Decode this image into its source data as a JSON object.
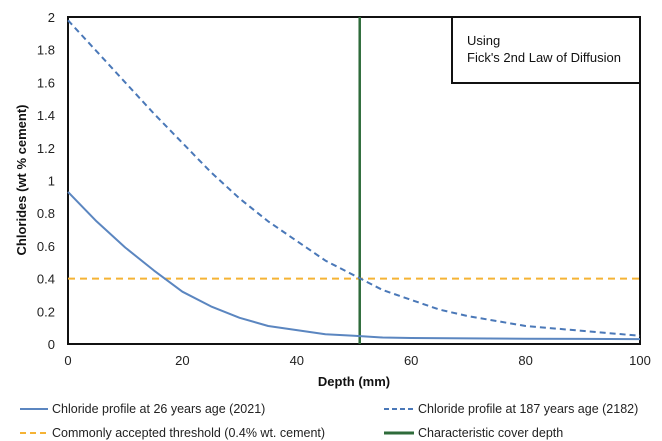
{
  "chart_data": {
    "type": "line",
    "xlabel": "Depth (mm)",
    "ylabel": "Chlorides (wt % cement)",
    "xlim": [
      0,
      100
    ],
    "ylim": [
      0,
      2
    ],
    "x_ticks": [
      "0",
      "20",
      "40",
      "60",
      "80",
      "100"
    ],
    "y_ticks": [
      "0",
      "0.2",
      "0.4",
      "0.6",
      "0.8",
      "1",
      "1.2",
      "1.4",
      "1.6",
      "1.8",
      "2"
    ],
    "grid": false,
    "annotation": [
      "Using",
      "Fick's 2nd Law of Diffusion"
    ],
    "legend_position": "bottom",
    "series": [
      {
        "name": "Chloride profile at 26 years age (2021)",
        "color": "#5b86c0",
        "dash": "solid",
        "x": [
          0,
          5,
          10,
          15,
          20,
          25,
          30,
          35,
          40,
          45,
          50,
          55,
          60,
          70,
          80,
          90,
          100
        ],
        "y": [
          0.93,
          0.75,
          0.59,
          0.45,
          0.32,
          0.23,
          0.16,
          0.11,
          0.085,
          0.06,
          0.05,
          0.04,
          0.037,
          0.034,
          0.032,
          0.031,
          0.03
        ]
      },
      {
        "name": "Chloride profile at 187 years age (2182)",
        "color": "#4a78b8",
        "dash": "dashed",
        "x": [
          0,
          5,
          10,
          15,
          20,
          25,
          30,
          35,
          40,
          45,
          50,
          55,
          60,
          65,
          70,
          75,
          80,
          90,
          100
        ],
        "y": [
          1.98,
          1.79,
          1.6,
          1.41,
          1.23,
          1.05,
          0.89,
          0.75,
          0.63,
          0.51,
          0.42,
          0.33,
          0.27,
          0.21,
          0.17,
          0.14,
          0.11,
          0.08,
          0.05
        ]
      }
    ],
    "reference_lines": [
      {
        "name": "Commonly accepted threshold (0.4% wt. cement)",
        "orientation": "horizontal",
        "value": 0.4,
        "color": "#f5b335",
        "dash": "dashed"
      },
      {
        "name": "Characteristic cover depth",
        "orientation": "vertical",
        "value": 51,
        "color": "#2e6b3a",
        "dash": "solid"
      }
    ]
  }
}
